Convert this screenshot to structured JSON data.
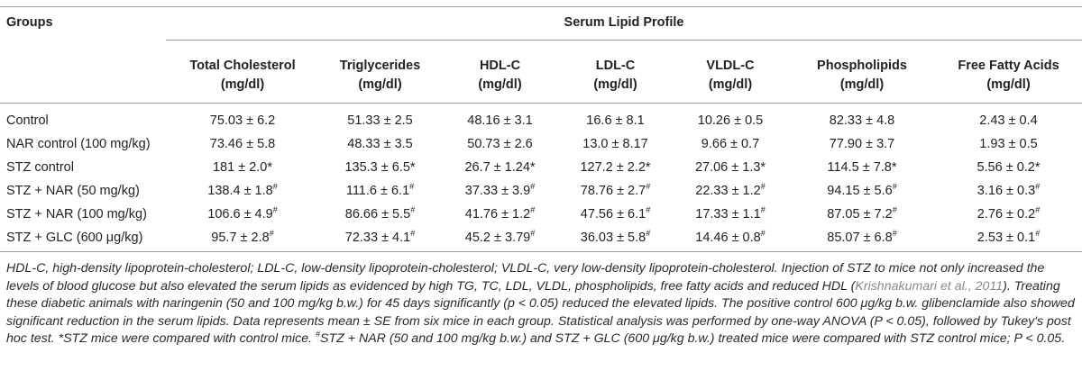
{
  "header": {
    "groups_label": "Groups",
    "span_label": "Serum Lipid Profile",
    "columns": [
      {
        "line1": "Total Cholesterol",
        "line2": "(mg/dl)"
      },
      {
        "line1": "Triglycerides",
        "line2": "(mg/dl)"
      },
      {
        "line1": "HDL-C",
        "line2": "(mg/dl)"
      },
      {
        "line1": "LDL-C",
        "line2": "(mg/dl)"
      },
      {
        "line1": "VLDL-C",
        "line2": "(mg/dl)"
      },
      {
        "line1": "Phospholipids",
        "line2": "(mg/dl)"
      },
      {
        "line1": "Free Fatty Acids",
        "line2": "(mg/dl)"
      }
    ]
  },
  "rows": [
    {
      "group": "Control",
      "cells": [
        {
          "v": "75.03 ± 6.2",
          "s": ""
        },
        {
          "v": "51.33 ± 2.5",
          "s": ""
        },
        {
          "v": "48.16 ± 3.1",
          "s": ""
        },
        {
          "v": "16.6 ± 8.1",
          "s": ""
        },
        {
          "v": "10.26 ± 0.5",
          "s": ""
        },
        {
          "v": "82.33 ± 4.8",
          "s": ""
        },
        {
          "v": "2.43 ± 0.4",
          "s": ""
        }
      ]
    },
    {
      "group": "NAR control (100 mg/kg)",
      "cells": [
        {
          "v": "73.46 ± 5.8",
          "s": ""
        },
        {
          "v": "48.33 ± 3.5",
          "s": ""
        },
        {
          "v": "50.73 ± 2.6",
          "s": ""
        },
        {
          "v": "13.0 ± 8.17",
          "s": ""
        },
        {
          "v": "9.66 ± 0.7",
          "s": ""
        },
        {
          "v": "77.90 ± 3.7",
          "s": ""
        },
        {
          "v": "1.93 ± 0.5",
          "s": ""
        }
      ]
    },
    {
      "group": "STZ control",
      "cells": [
        {
          "v": "181 ± 2.0*",
          "s": ""
        },
        {
          "v": "135.3 ± 6.5*",
          "s": ""
        },
        {
          "v": "26.7 ± 1.24*",
          "s": ""
        },
        {
          "v": "127.2 ± 2.2*",
          "s": ""
        },
        {
          "v": "27.06 ± 1.3*",
          "s": ""
        },
        {
          "v": "114.5 ± 7.8*",
          "s": ""
        },
        {
          "v": "5.56 ± 0.2*",
          "s": ""
        }
      ]
    },
    {
      "group": "STZ + NAR (50 mg/kg)",
      "cells": [
        {
          "v": "138.4 ± 1.8",
          "s": "#"
        },
        {
          "v": "111.6 ± 6.1",
          "s": "#"
        },
        {
          "v": "37.33 ± 3.9",
          "s": "#"
        },
        {
          "v": "78.76 ± 2.7",
          "s": "#"
        },
        {
          "v": "22.33 ± 1.2",
          "s": "#"
        },
        {
          "v": "94.15 ± 5.6",
          "s": "#"
        },
        {
          "v": "3.16 ± 0.3",
          "s": "#"
        }
      ]
    },
    {
      "group": "STZ + NAR (100 mg/kg)",
      "cells": [
        {
          "v": "106.6 ± 4.9",
          "s": "#"
        },
        {
          "v": "86.66 ± 5.5",
          "s": "#"
        },
        {
          "v": "41.76 ± 1.2",
          "s": "#"
        },
        {
          "v": "47.56 ± 6.1",
          "s": "#"
        },
        {
          "v": "17.33 ± 1.1",
          "s": "#"
        },
        {
          "v": "87.05 ± 7.2",
          "s": "#"
        },
        {
          "v": "2.76 ± 0.2",
          "s": "#"
        }
      ]
    },
    {
      "group": "STZ + GLC (600 μg/kg)",
      "cells": [
        {
          "v": "95.7 ± 2.8",
          "s": "#"
        },
        {
          "v": "72.33 ± 4.1",
          "s": "#"
        },
        {
          "v": "45.2 ± 3.79",
          "s": "#"
        },
        {
          "v": "36.03 ± 5.8",
          "s": "#"
        },
        {
          "v": "14.46 ± 0.8",
          "s": "#"
        },
        {
          "v": "85.07 ± 6.8",
          "s": "#"
        },
        {
          "v": "2.53 ± 0.1",
          "s": "#"
        }
      ]
    }
  ],
  "footnote": {
    "part1": "HDL-C, high-density lipoprotein-cholesterol; LDL-C, low-density lipoprotein-cholesterol; VLDL-C, very low-density lipoprotein-cholesterol. Injection of STZ to mice not only increased the levels of blood glucose but also elevated the serum lipids as evidenced by high TG, TC, LDL, VLDL, phospholipids, free fatty acids and reduced HDL (",
    "citation": "Krishnakumari et al., 2011",
    "part2": "). Treating these diabetic animals with naringenin (50 and 100 mg/kg b.w.) for 45 days significantly (p < 0.05) reduced the elevated lipids. The positive control 600 μg/kg b.w. glibenclamide also showed significant reduction in the serum lipids. Data represents mean ± SE from six mice in each group. Statistical analysis was performed by one-way ANOVA (P < 0.05), followed by Tukey's post hoc test. *STZ mice were compared with control mice. ",
    "hash": "#",
    "part3": "STZ + NAR (50 and 100 mg/kg b.w.) and STZ + GLC (600 μg/kg b.w.) treated mice were compared with STZ control mice; P < 0.05."
  }
}
